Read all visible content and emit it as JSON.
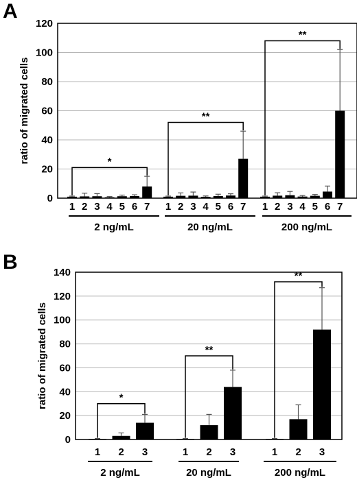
{
  "chart_data": [
    {
      "panel": "A",
      "type": "bar",
      "title": "",
      "ylabel": "ratio of migrated cells",
      "ylim": [
        0,
        120
      ],
      "yticks": [
        0,
        20,
        40,
        60,
        80,
        100,
        120
      ],
      "grid": true,
      "groups": [
        {
          "label": "2 ng/mL",
          "categories": [
            "1",
            "2",
            "3",
            "4",
            "5",
            "6",
            "7"
          ],
          "values": [
            1,
            1.2,
            1.3,
            0.6,
            1.3,
            1.4,
            8
          ],
          "errors": [
            0.4,
            2.2,
            1.8,
            0.5,
            0.8,
            0.9,
            7
          ],
          "significance": {
            "from": 0,
            "to": 6,
            "label": "*",
            "y": 21
          }
        },
        {
          "label": "20 ng/mL",
          "categories": [
            "1",
            "2",
            "3",
            "4",
            "5",
            "6",
            "7"
          ],
          "values": [
            1,
            1.6,
            1.7,
            0.9,
            1.4,
            1.8,
            27
          ],
          "errors": [
            0.4,
            2.0,
            2.5,
            0.6,
            1.3,
            1.2,
            19
          ],
          "significance": {
            "from": 0,
            "to": 6,
            "label": "**",
            "y": 52
          }
        },
        {
          "label": "200 ng/mL",
          "categories": [
            "1",
            "2",
            "3",
            "4",
            "5",
            "6",
            "7"
          ],
          "values": [
            1,
            1.7,
            2.0,
            1.1,
            1.6,
            4.5,
            60
          ],
          "errors": [
            0.4,
            2.0,
            2.6,
            0.7,
            0.9,
            3.8,
            42
          ],
          "significance": {
            "from": 0,
            "to": 6,
            "label": "**",
            "y": 108
          }
        }
      ]
    },
    {
      "panel": "B",
      "type": "bar",
      "title": "",
      "ylabel": "ratio of migrated cells",
      "ylim": [
        0,
        140
      ],
      "yticks": [
        0,
        20,
        40,
        60,
        80,
        100,
        120,
        140
      ],
      "grid": true,
      "groups": [
        {
          "label": "2 ng/mL",
          "categories": [
            "1",
            "2",
            "3"
          ],
          "values": [
            0.5,
            3,
            14
          ],
          "errors": [
            0.3,
            2.5,
            7
          ],
          "significance": {
            "from": 0,
            "to": 2,
            "label": "*",
            "y": 30
          }
        },
        {
          "label": "20 ng/mL",
          "categories": [
            "1",
            "2",
            "3"
          ],
          "values": [
            0.5,
            12,
            44
          ],
          "errors": [
            0.3,
            9,
            14
          ],
          "significance": {
            "from": 0,
            "to": 2,
            "label": "**",
            "y": 70
          }
        },
        {
          "label": "200 ng/mL",
          "categories": [
            "1",
            "2",
            "3"
          ],
          "values": [
            0.5,
            17,
            92
          ],
          "errors": [
            0.3,
            12,
            35
          ],
          "significance": {
            "from": 0,
            "to": 2,
            "label": "**",
            "y": 132
          }
        }
      ]
    }
  ]
}
